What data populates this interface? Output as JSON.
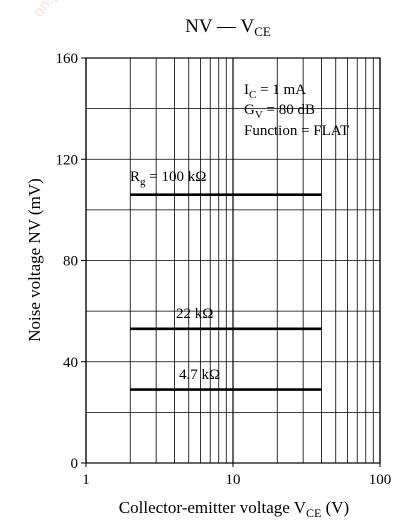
{
  "chart_data": {
    "type": "line",
    "title": {
      "main": "NV",
      "separator": " — ",
      "var": "V",
      "sub": "CE"
    },
    "xlabel": {
      "text": "Collector-emitter voltage  V",
      "sub": "CE",
      "unit": "  (V)"
    },
    "ylabel": "Noise voltage  NV  (mV)",
    "x_scale": "log",
    "xlim": [
      1,
      100
    ],
    "ylim": [
      0,
      160
    ],
    "x_ticks": [
      "1",
      "10",
      "100"
    ],
    "y_ticks": [
      "0",
      "40",
      "80",
      "120",
      "160"
    ],
    "grid": true,
    "conditions": [
      {
        "main": "I",
        "sub": "C",
        "rest": " = 1 mA"
      },
      {
        "main": "G",
        "sub": "V",
        "rest": " = 80 dB"
      },
      {
        "main": "Function = FLAT",
        "sub": "",
        "rest": ""
      }
    ],
    "series": [
      {
        "label_main": "R",
        "label_sub": "g",
        "label_rest": " = 100 kΩ",
        "x": [
          2,
          40
        ],
        "y": [
          106,
          106
        ]
      },
      {
        "label_main": "22 kΩ",
        "label_sub": "",
        "label_rest": "",
        "x": [
          2,
          40
        ],
        "y": [
          53,
          53
        ]
      },
      {
        "label_main": "4.7 kΩ",
        "label_sub": "",
        "label_rest": "",
        "x": [
          2,
          40
        ],
        "y": [
          29,
          29
        ]
      }
    ]
  }
}
